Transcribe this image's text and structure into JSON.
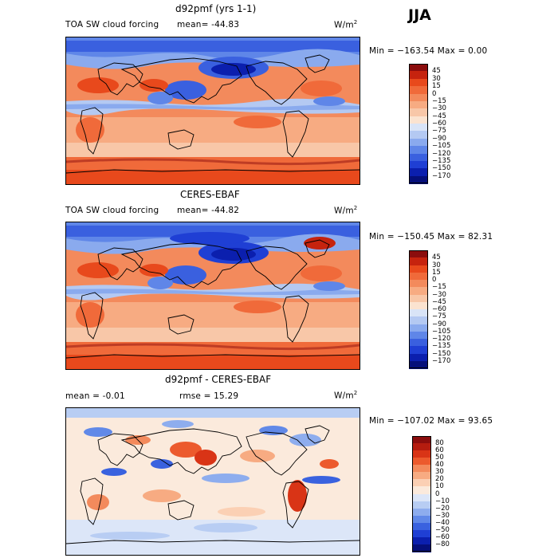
{
  "season": "JJA",
  "panels": [
    {
      "title": "d92pmf (yrs 1-1)",
      "left_label": "TOA SW cloud forcing",
      "stat1": "mean= -44.83",
      "stat2": "",
      "units": "W/m",
      "units_sup": "2",
      "minmax": "Min = −163.54  Max =    0.00",
      "colorbar": {
        "labels": [
          "45",
          "30",
          "15",
          "0",
          "−15",
          "−30",
          "−45",
          "−60",
          "−75",
          "−90",
          "−105",
          "−120",
          "−135",
          "−150",
          "−170"
        ],
        "colors": [
          "#8b0d0d",
          "#c6230e",
          "#e8491c",
          "#f06a3a",
          "#f38a5c",
          "#f7ab82",
          "#f8c7a8",
          "#fbe3d0",
          "#d9e4f7",
          "#b4c9f2",
          "#8aaaee",
          "#5f86e8",
          "#3a60df",
          "#1f3fd4",
          "#0b1fae",
          "#050f7a"
        ],
        "scheme": "absolute"
      }
    },
    {
      "title": "CERES-EBAF",
      "left_label": "TOA SW cloud forcing",
      "stat1": "mean= -44.82",
      "stat2": "",
      "units": "W/m",
      "units_sup": "2",
      "minmax": "Min = −150.45  Max =  82.31",
      "colorbar": {
        "labels": [
          "45",
          "30",
          "15",
          "0",
          "−15",
          "−30",
          "−45",
          "−60",
          "−75",
          "−90",
          "−105",
          "−120",
          "−135",
          "−150",
          "−170"
        ],
        "colors": [
          "#8b0d0d",
          "#c6230e",
          "#e8491c",
          "#f06a3a",
          "#f38a5c",
          "#f7ab82",
          "#f8c7a8",
          "#fbe3d0",
          "#d9e4f7",
          "#b4c9f2",
          "#8aaaee",
          "#5f86e8",
          "#3a60df",
          "#1f3fd4",
          "#0b1fae",
          "#050f7a"
        ],
        "scheme": "absolute"
      }
    },
    {
      "title": "d92pmf - CERES-EBAF",
      "left_label": "mean =   -0.01",
      "stat1": "",
      "stat2": "rmse =   15.29",
      "units": "W/m",
      "units_sup": "2",
      "minmax": "Min = −107.02  Max =  93.65",
      "colorbar": {
        "labels": [
          "80",
          "60",
          "50",
          "40",
          "30",
          "20",
          "10",
          "0",
          "−10",
          "−20",
          "−30",
          "−40",
          "−50",
          "−60",
          "−80"
        ],
        "colors": [
          "#8b0d0d",
          "#b51c0f",
          "#d93416",
          "#ec5a2d",
          "#f38a5c",
          "#f7ab82",
          "#fbd0b4",
          "#fbeadc",
          "#dce6f8",
          "#b8cdf3",
          "#8eadee",
          "#6189e8",
          "#3a62df",
          "#1f3fd4",
          "#0b1fae",
          "#050f7a"
        ],
        "scheme": "difference"
      }
    }
  ]
}
